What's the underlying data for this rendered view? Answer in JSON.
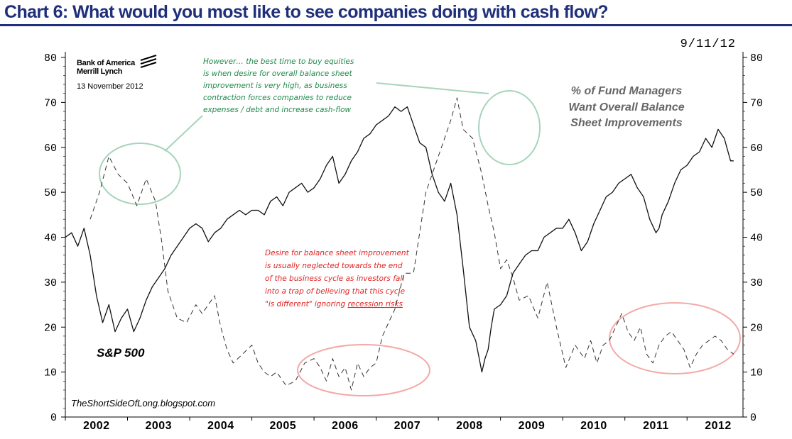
{
  "title": "Chart 6: What would you most like to see companies doing with cash flow?",
  "date_stamp": "9/11/12",
  "logo": {
    "line1": "Bank of America",
    "line2": "Merrill Lynch",
    "date": "13 November 2012"
  },
  "source": "TheShortSideOfLong.blogspot.com",
  "annotations": {
    "green": [
      "However… the best time to buy equities",
      "is when desire for overall balance sheet",
      "improvement is very high, as business",
      "contraction forces companies to reduce",
      "expenses / debt and increase cash-flow"
    ],
    "red": [
      "Desire for balance sheet improvement",
      "is usually neglected towards the end",
      "of the business cycle as investors fall",
      "into a trap of believing that this cycle",
      "\"is different\" ignoring "
    ],
    "red_underlined": "recession risks"
  },
  "series_labels": {
    "fund_managers": [
      "% of Fund Managers",
      "Want Overall Balance",
      "Sheet Improvements"
    ],
    "sp500": "S&P 500"
  },
  "colors": {
    "title": "#1f2f7a",
    "green": "#1f8a4c",
    "red": "#e02424",
    "green_ellipse": "#9fd0b4",
    "red_ellipse": "#f2a0a0"
  },
  "chart_data": {
    "type": "line",
    "title": "Chart 6: What would you most like to see companies doing with cash flow?",
    "x_categories": [
      "2002",
      "2003",
      "2004",
      "2005",
      "2006",
      "2007",
      "2008",
      "2009",
      "2010",
      "2011",
      "2012"
    ],
    "xlim": [
      2002.0,
      2012.9
    ],
    "ylim_left": [
      0,
      80
    ],
    "ylim_right": [
      0,
      80
    ],
    "y_ticks": [
      0,
      10,
      20,
      30,
      40,
      50,
      60,
      70,
      80
    ],
    "grid": false,
    "series": [
      {
        "name": "% of Fund Managers Want Overall Balance Sheet Improvements",
        "style": "dashed",
        "axis": "left",
        "x": [
          2002.4,
          2002.55,
          2002.7,
          2002.85,
          2003.0,
          2003.15,
          2003.3,
          2003.45,
          2003.55,
          2003.65,
          2003.8,
          2003.95,
          2004.1,
          2004.2,
          2004.3,
          2004.4,
          2004.5,
          2004.6,
          2004.7,
          2004.85,
          2005.0,
          2005.1,
          2005.2,
          2005.3,
          2005.4,
          2005.55,
          2005.7,
          2005.85,
          2006.0,
          2006.1,
          2006.2,
          2006.3,
          2006.4,
          2006.5,
          2006.6,
          2006.7,
          2006.8,
          2006.9,
          2007.0,
          2007.1,
          2007.2,
          2007.3,
          2007.45,
          2007.6,
          2007.8,
          2008.0,
          2008.1,
          2008.2,
          2008.3,
          2008.4,
          2008.55,
          2008.7,
          2008.8,
          2008.9,
          2009.0,
          2009.1,
          2009.2,
          2009.3,
          2009.45,
          2009.6,
          2009.75,
          2009.9,
          2010.05,
          2010.2,
          2010.35,
          2010.45,
          2010.55,
          2010.65,
          2010.75,
          2010.85,
          2010.95,
          2011.05,
          2011.15,
          2011.25,
          2011.35,
          2011.45,
          2011.55,
          2011.65,
          2011.75,
          2011.85,
          2011.95,
          2012.05,
          2012.15,
          2012.25,
          2012.35,
          2012.45,
          2012.55,
          2012.65,
          2012.75
        ],
        "values": [
          44,
          50,
          58,
          54,
          52,
          47,
          53,
          48,
          39,
          28,
          22,
          21,
          25,
          23,
          25,
          27,
          20,
          15,
          12,
          14,
          16,
          12,
          10,
          9,
          10,
          7,
          8,
          12,
          13,
          11,
          8,
          13,
          9,
          11,
          6,
          12,
          9,
          11,
          12,
          18,
          21,
          24,
          32,
          32,
          50,
          58,
          62,
          66,
          71,
          64,
          62,
          54,
          47,
          41,
          33,
          35,
          31,
          26,
          27,
          22,
          30,
          20,
          11,
          16,
          13,
          17,
          12,
          16,
          17,
          20,
          23,
          19,
          17,
          20,
          14,
          12,
          16,
          18,
          19,
          17,
          15,
          11,
          14,
          16,
          17,
          18,
          17,
          15,
          14
        ]
      },
      {
        "name": "S&P 500",
        "style": "solid",
        "axis": "left",
        "x": [
          2002.0,
          2002.1,
          2002.2,
          2002.3,
          2002.4,
          2002.5,
          2002.6,
          2002.7,
          2002.8,
          2002.9,
          2003.0,
          2003.1,
          2003.2,
          2003.3,
          2003.4,
          2003.5,
          2003.6,
          2003.7,
          2003.8,
          2003.9,
          2004.0,
          2004.1,
          2004.2,
          2004.3,
          2004.4,
          2004.5,
          2004.6,
          2004.7,
          2004.8,
          2004.9,
          2005.0,
          2005.1,
          2005.2,
          2005.3,
          2005.4,
          2005.5,
          2005.6,
          2005.7,
          2005.8,
          2005.9,
          2006.0,
          2006.1,
          2006.2,
          2006.3,
          2006.4,
          2006.5,
          2006.6,
          2006.7,
          2006.8,
          2006.9,
          2007.0,
          2007.1,
          2007.2,
          2007.3,
          2007.4,
          2007.5,
          2007.6,
          2007.7,
          2007.8,
          2007.9,
          2008.0,
          2008.1,
          2008.2,
          2008.3,
          2008.4,
          2008.5,
          2008.6,
          2008.7,
          2008.75,
          2008.8,
          2008.85,
          2008.9,
          2009.0,
          2009.1,
          2009.2,
          2009.3,
          2009.4,
          2009.5,
          2009.6,
          2009.7,
          2009.8,
          2009.9,
          2010.0,
          2010.1,
          2010.2,
          2010.3,
          2010.4,
          2010.5,
          2010.6,
          2010.7,
          2010.8,
          2010.9,
          2011.0,
          2011.1,
          2011.2,
          2011.3,
          2011.4,
          2011.5,
          2011.55,
          2011.6,
          2011.7,
          2011.8,
          2011.9,
          2012.0,
          2012.1,
          2012.2,
          2012.3,
          2012.4,
          2012.5,
          2012.6,
          2012.7,
          2012.75
        ],
        "values": [
          40,
          41,
          38,
          42,
          36,
          27,
          21,
          25,
          19,
          22,
          24,
          19,
          22,
          26,
          29,
          31,
          33,
          36,
          38,
          40,
          42,
          43,
          42,
          39,
          41,
          42,
          44,
          45,
          46,
          45,
          46,
          46,
          45,
          48,
          49,
          47,
          50,
          51,
          52,
          50,
          51,
          53,
          56,
          58,
          52,
          54,
          57,
          59,
          62,
          63,
          65,
          66,
          67,
          69,
          68,
          69,
          65,
          61,
          60,
          54,
          50,
          48,
          52,
          45,
          33,
          20,
          17,
          10,
          13,
          15,
          20,
          24,
          25,
          27,
          32,
          34,
          36,
          37,
          37,
          40,
          41,
          42,
          42,
          44,
          41,
          37,
          39,
          43,
          46,
          49,
          50,
          52,
          53,
          54,
          51,
          49,
          44,
          41,
          42,
          45,
          48,
          52,
          55,
          56,
          58,
          59,
          62,
          60,
          64,
          62,
          57,
          57
        ]
      }
    ]
  }
}
